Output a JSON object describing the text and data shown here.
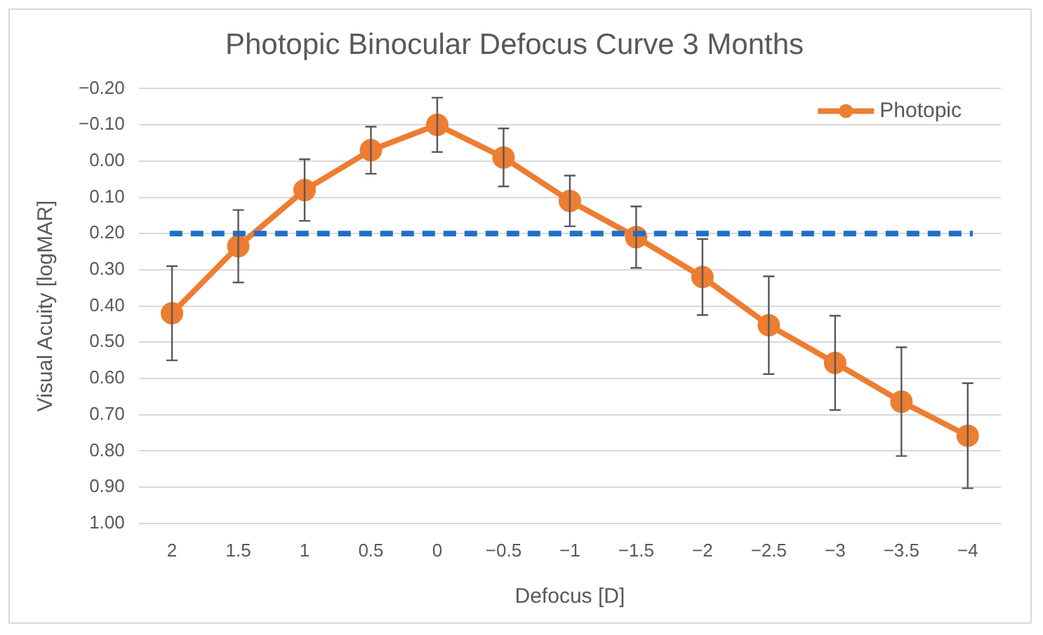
{
  "chart_data": {
    "type": "line",
    "title": "Photopic Binocular Defocus Curve 3 Months",
    "xlabel": "Defocus [D]",
    "ylabel": "Visual Acuity [logMAR]",
    "categories": [
      "2",
      "1.5",
      "1",
      "0.5",
      "0",
      "−0.5",
      "−1",
      "−1.5",
      "−2",
      "−2.5",
      "−3",
      "−3.5",
      "−4"
    ],
    "series": [
      {
        "name": "Photopic",
        "color": "#ed7d31",
        "values": [
          0.42,
          0.235,
          0.08,
          -0.03,
          -0.1,
          -0.01,
          0.11,
          0.21,
          0.32,
          0.453,
          0.557,
          0.664,
          0.758
        ],
        "errors": [
          0.13,
          0.1,
          0.085,
          0.065,
          0.075,
          0.08,
          0.07,
          0.085,
          0.105,
          0.135,
          0.13,
          0.15,
          0.145
        ]
      }
    ],
    "ylim": [
      1.0,
      -0.2
    ],
    "yticks": [
      {
        "value": -0.2,
        "label": "−0.20"
      },
      {
        "value": -0.1,
        "label": "−0.10"
      },
      {
        "value": 0,
        "label": "0.00"
      },
      {
        "value": 0.1,
        "label": "0.10"
      },
      {
        "value": 0.2,
        "label": "0.20"
      },
      {
        "value": 0.3,
        "label": "0.30"
      },
      {
        "value": 0.4,
        "label": "0.40"
      },
      {
        "value": 0.5,
        "label": "0.50"
      },
      {
        "value": 0.6,
        "label": "0.60"
      },
      {
        "value": 0.7,
        "label": "0.70"
      },
      {
        "value": 0.8,
        "label": "0.80"
      },
      {
        "value": 0.9,
        "label": "0.90"
      },
      {
        "value": 1.0,
        "label": "1.00"
      }
    ],
    "ref_lines": [
      {
        "axis": "y",
        "value": 0.2,
        "color": "#1f6fc8",
        "line_style": "dashed"
      }
    ],
    "grid": "y",
    "legend": "top right",
    "marker": "circle",
    "line_style": "solid"
  }
}
